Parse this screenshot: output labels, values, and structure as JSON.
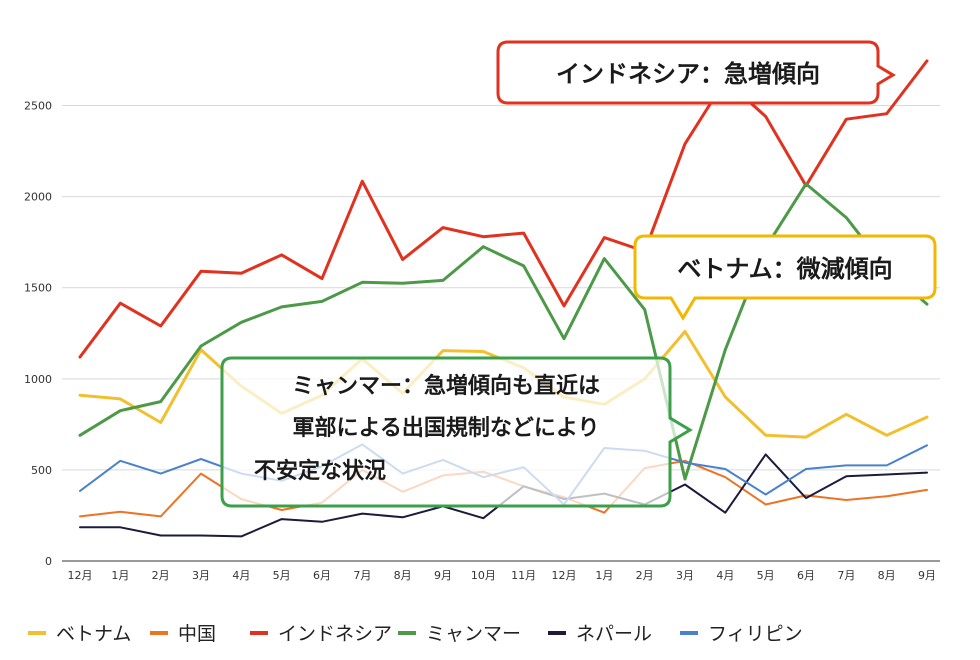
{
  "chart_data": {
    "type": "line",
    "categories": [
      "12月",
      "1月",
      "2月",
      "3月",
      "4月",
      "5月",
      "6月",
      "7月",
      "8月",
      "9月",
      "10月",
      "11月",
      "12月",
      "1月",
      "2月",
      "3月",
      "4月",
      "5月",
      "6月",
      "7月",
      "8月",
      "9月"
    ],
    "ylim": [
      0,
      2750
    ],
    "yticks": [
      0,
      500,
      1000,
      1500,
      2000,
      2500
    ],
    "grid": true,
    "legend_position": "bottom",
    "series": [
      {
        "name": "ベトナム",
        "color": "#f2c02e",
        "values": [
          910,
          890,
          760,
          1160,
          960,
          810,
          910,
          1110,
          920,
          1155,
          1150,
          1060,
          900,
          860,
          1000,
          1260,
          900,
          690,
          680,
          805,
          690,
          790
        ]
      },
      {
        "name": "中国",
        "color": "#ec7424",
        "values": [
          245,
          270,
          245,
          480,
          340,
          280,
          320,
          500,
          380,
          470,
          490,
          410,
          350,
          265,
          510,
          550,
          460,
          310,
          360,
          335,
          355,
          390
        ]
      },
      {
        "name": "インドネシア",
        "color": "#e0321f",
        "values": [
          1120,
          1415,
          1290,
          1590,
          1580,
          1680,
          1550,
          2085,
          1655,
          1830,
          1780,
          1800,
          1400,
          1775,
          1700,
          2290,
          2640,
          2440,
          2060,
          2425,
          2455,
          2745
        ]
      },
      {
        "name": "ミャンマー",
        "color": "#4c9a48",
        "values": [
          690,
          825,
          875,
          1180,
          1310,
          1395,
          1425,
          1530,
          1525,
          1540,
          1725,
          1620,
          1220,
          1660,
          1380,
          450,
          1160,
          1720,
          2070,
          1885,
          1600,
          1410
        ]
      },
      {
        "name": "ネパール",
        "color": "#1c1b3c",
        "values": [
          185,
          185,
          140,
          140,
          135,
          230,
          215,
          260,
          240,
          300,
          235,
          410,
          340,
          370,
          310,
          420,
          265,
          585,
          345,
          465,
          475,
          485
        ]
      },
      {
        "name": "フィリピン",
        "color": "#4a82cc",
        "values": [
          385,
          550,
          480,
          560,
          480,
          440,
          520,
          640,
          480,
          555,
          460,
          515,
          310,
          620,
          605,
          540,
          505,
          365,
          505,
          525,
          525,
          635
        ]
      }
    ],
    "annotations": [
      {
        "text": "インドネシア：急増傾向",
        "color": "#e0321f"
      },
      {
        "text": "ベトナム：微減傾向",
        "color": "#f2b700"
      },
      {
        "lines": [
          "ミャンマー：急増傾向も直近は",
          "軍部による出国規制などにより",
          "不安定な状況"
        ],
        "color": "#3ba049"
      }
    ]
  }
}
